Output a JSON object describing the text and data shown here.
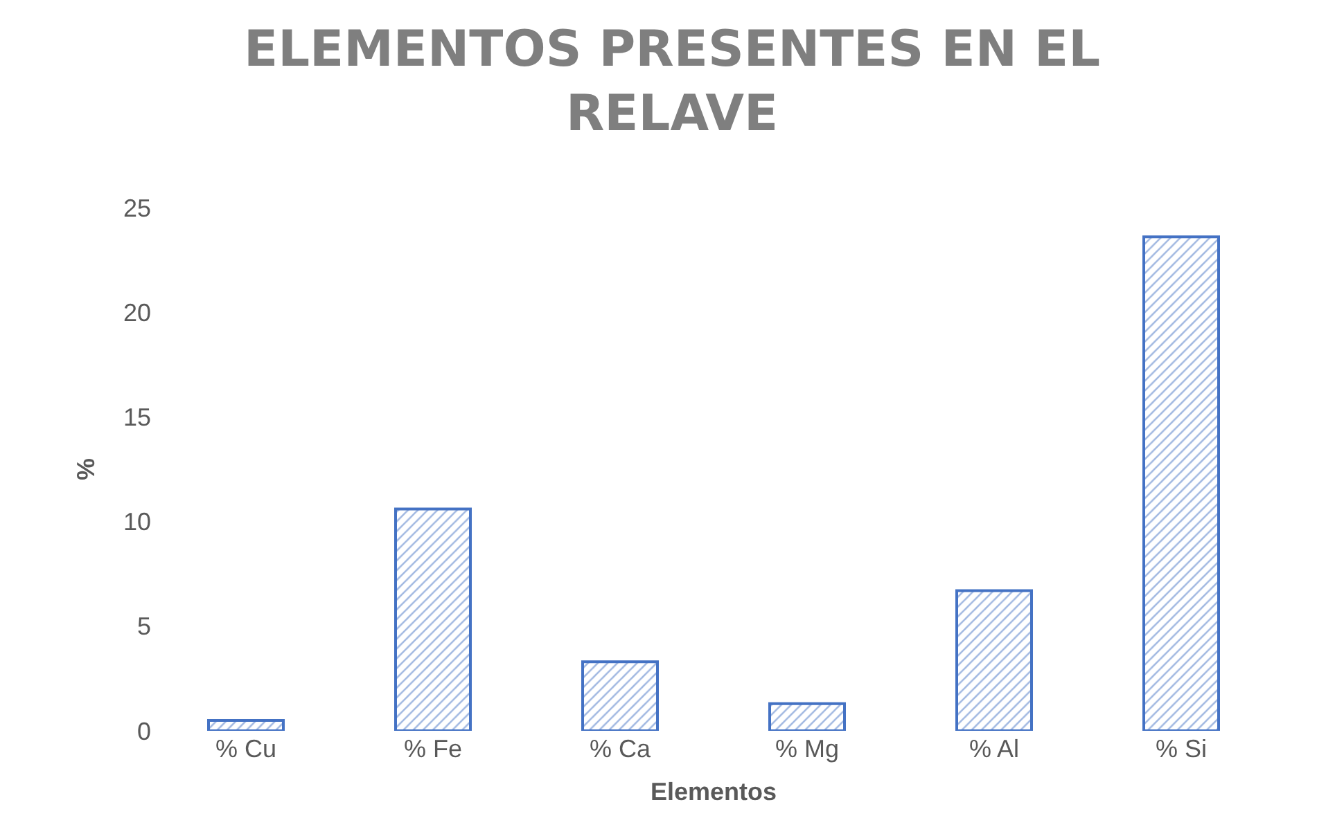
{
  "chart_data": {
    "type": "bar",
    "title": "ELEMENTOS PRESENTES EN EL RELAVE",
    "xlabel": "Elementos",
    "ylabel": "%",
    "categories": [
      "% Cu",
      "% Fe",
      "% Ca",
      "% Mg",
      "% Al",
      "% Si"
    ],
    "values": [
      0.5,
      10.6,
      3.3,
      1.3,
      6.7,
      23.6
    ],
    "color": "#4472c4",
    "ylim": [
      0,
      25
    ],
    "yticks": [
      0,
      5,
      10,
      15,
      20,
      25
    ]
  }
}
